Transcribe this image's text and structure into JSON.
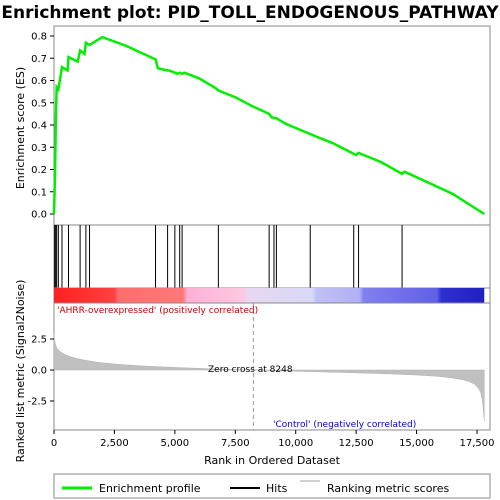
{
  "chart_data": {
    "type": "line",
    "title": "Enrichment plot: PID_TOLL_ENDOGENOUS_PATHWAY",
    "x_max": 17800,
    "top_panel": {
      "ylabel": "Enrichment score (ES)",
      "ylim": [
        0,
        0.85
      ],
      "yticks": [
        "0.0",
        "0.1",
        "0.2",
        "0.3",
        "0.4",
        "0.5",
        "0.6",
        "0.7",
        "0.8"
      ],
      "series": [
        {
          "name": "Enrichment profile",
          "color": "#00ee00",
          "x": [
            0,
            40,
            80,
            110,
            180,
            330,
            560,
            600,
            980,
            1080,
            1260,
            1320,
            1470,
            2000,
            3000,
            4200,
            4300,
            4700,
            4760,
            5000,
            5100,
            5200,
            5300,
            5400,
            6000,
            6700,
            6800,
            7500,
            8200,
            8900,
            9000,
            9200,
            9600,
            10700,
            10800,
            11500,
            12500,
            12600,
            12700,
            13500,
            14400,
            14500,
            15500,
            16500,
            17800
          ],
          "y": [
            0.0,
            0.18,
            0.44,
            0.57,
            0.56,
            0.66,
            0.645,
            0.705,
            0.685,
            0.735,
            0.72,
            0.77,
            0.76,
            0.795,
            0.755,
            0.695,
            0.655,
            0.645,
            0.645,
            0.635,
            0.63,
            0.635,
            0.63,
            0.635,
            0.61,
            0.565,
            0.555,
            0.525,
            0.485,
            0.45,
            0.435,
            0.43,
            0.405,
            0.355,
            0.35,
            0.32,
            0.265,
            0.275,
            0.27,
            0.235,
            0.18,
            0.19,
            0.14,
            0.09,
            0.0
          ]
        }
      ]
    },
    "hits": {
      "name": "Hits",
      "x": [
        30,
        70,
        110,
        180,
        330,
        600,
        1080,
        1320,
        1470,
        4200,
        4700,
        5000,
        5200,
        5300,
        6800,
        8900,
        9100,
        9200,
        10600,
        12400,
        12600,
        14400
      ]
    },
    "bottom_panel": {
      "ylabel": "Ranked list metric (Signal2Noise)",
      "xlabel": "Rank in Ordered Dataset",
      "ylim": [
        -4.3,
        3.0
      ],
      "yticks": [
        "2.5",
        "0.0",
        "-2.5"
      ],
      "xticks": [
        "0",
        "2,500",
        "5,000",
        "7,500",
        "10,000",
        "12,500",
        "15,000",
        "17,500"
      ],
      "series_name": "Ranking metric scores",
      "x": [
        0,
        20,
        60,
        120,
        250,
        400,
        600,
        900,
        1300,
        1800,
        2500,
        3500,
        4500,
        5500,
        6500,
        7500,
        8248,
        9000,
        10000,
        11000,
        12000,
        13000,
        14000,
        15000,
        15800,
        16400,
        16900,
        17200,
        17400,
        17550,
        17650,
        17720,
        17760,
        17800
      ],
      "y": [
        3.0,
        2.5,
        2.05,
        1.75,
        1.5,
        1.3,
        1.12,
        0.95,
        0.78,
        0.62,
        0.48,
        0.35,
        0.25,
        0.17,
        0.1,
        0.04,
        0.0,
        -0.05,
        -0.1,
        -0.15,
        -0.2,
        -0.26,
        -0.32,
        -0.4,
        -0.5,
        -0.62,
        -0.78,
        -0.95,
        -1.15,
        -1.45,
        -1.8,
        -2.4,
        -3.2,
        -4.1
      ]
    },
    "annotations": {
      "positive": "'AHRR-overexpressed' (positively correlated)",
      "negative": "'Control' (negatively correlated)",
      "zero_cross": "Zero cross at 8248",
      "zero_cross_x": 8248
    },
    "legend": {
      "position": "bottom",
      "items": [
        "Enrichment profile",
        "Hits",
        "Ranking metric scores"
      ]
    },
    "colors": {
      "profile": "#00ee00",
      "hits": "#000000",
      "metric_fill": "#c0c0c0",
      "positive_text": "#cc0000",
      "negative_text": "#0000cc",
      "gradient": [
        "#ff2020",
        "#ff6e6e",
        "#ffb0d8",
        "#e8d8f2",
        "#c0c0f4",
        "#8080f0",
        "#3030d0"
      ]
    }
  }
}
